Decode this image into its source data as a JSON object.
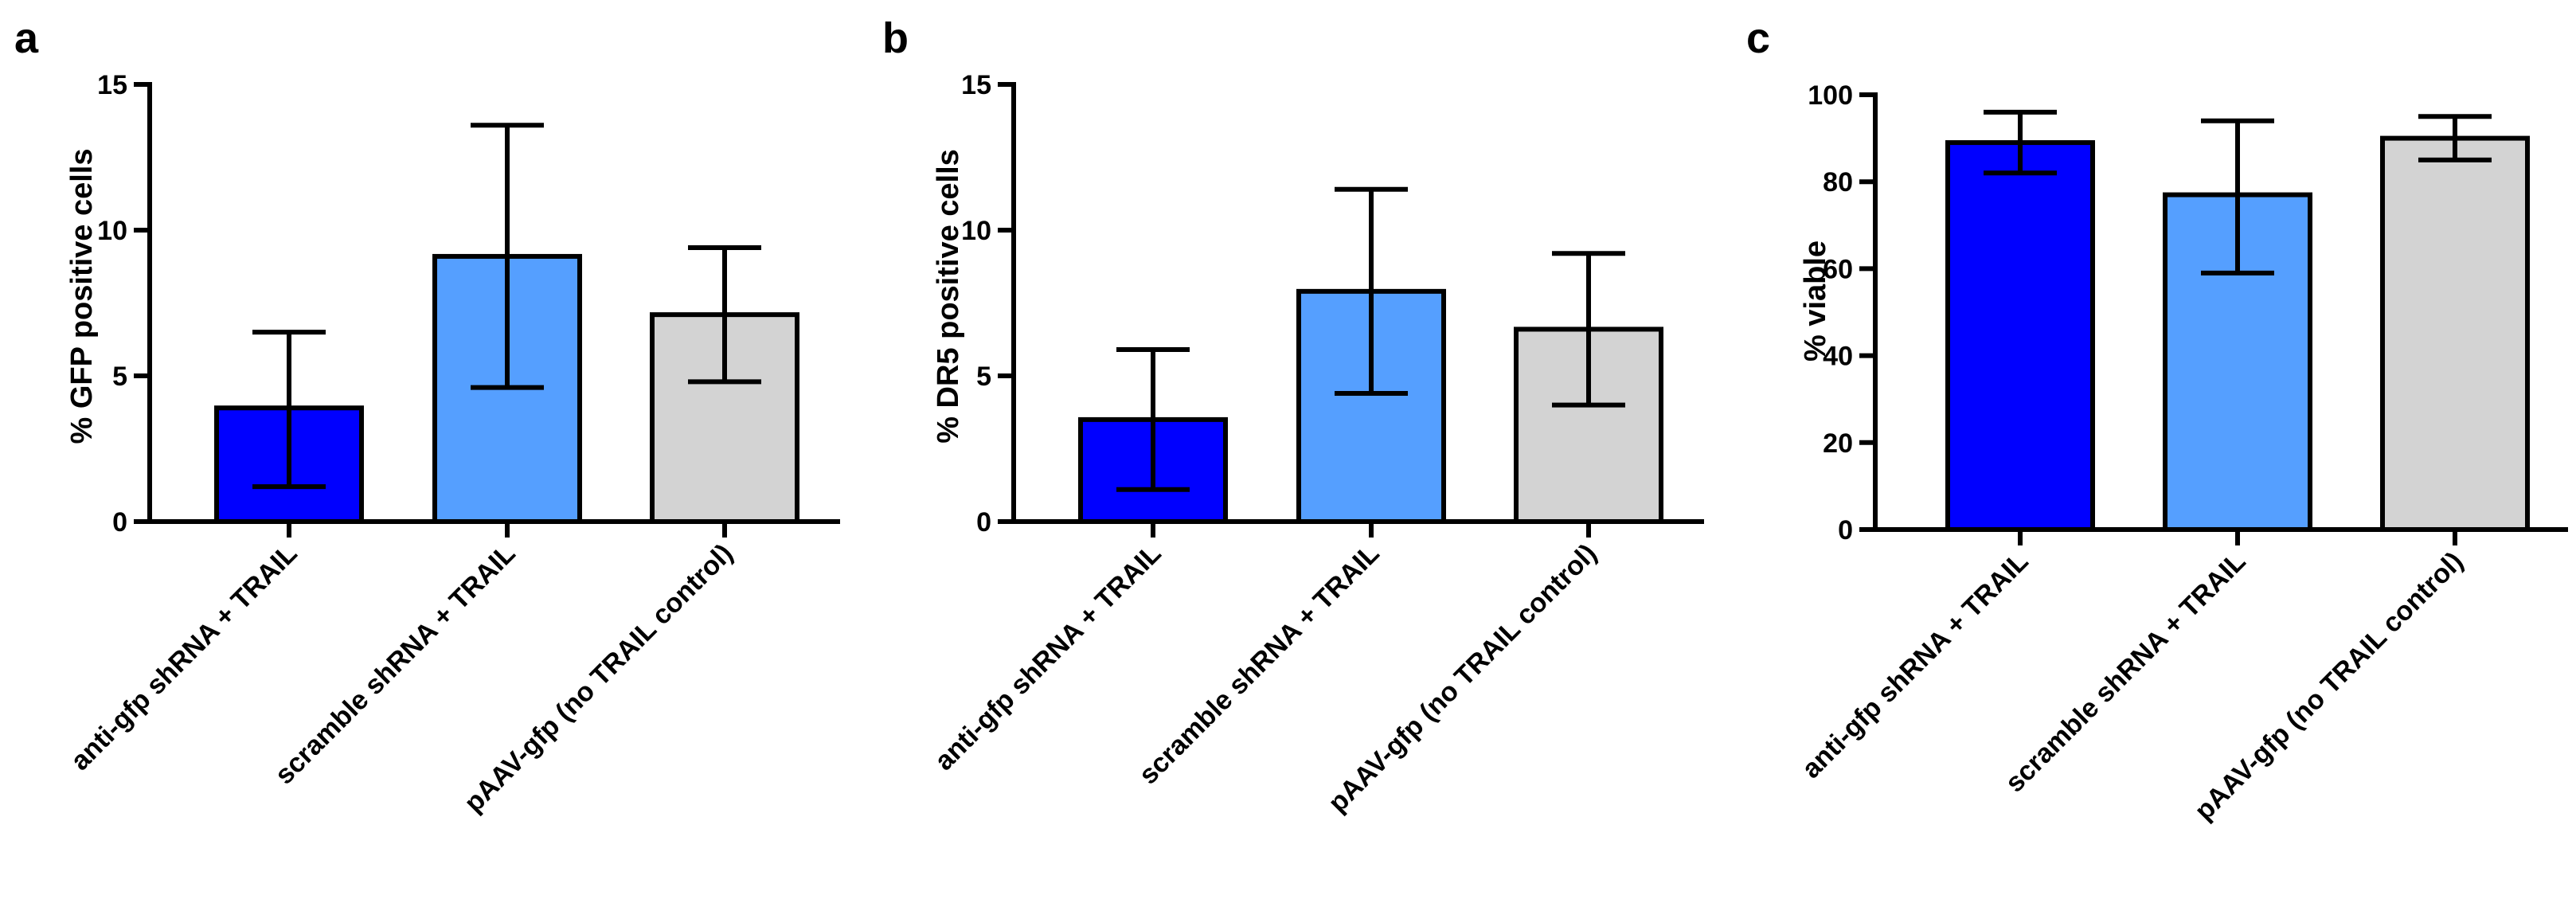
{
  "chart_data": [
    {
      "panel": "a",
      "type": "bar",
      "title": "",
      "xlabel": "",
      "ylabel": "% GFP positive cells",
      "ylim": [
        0,
        15
      ],
      "yticks": [
        0,
        5,
        10,
        15
      ],
      "categories": [
        "anti-gfp shRNA + TRAIL",
        "scramble shRNA + TRAIL",
        "pAAV-gfp (no TRAIL control)"
      ],
      "values": [
        3.9,
        9.1,
        7.1
      ],
      "error_low": [
        1.2,
        4.6,
        4.8
      ],
      "error_high": [
        6.5,
        13.6,
        9.4
      ],
      "colors": [
        "#0000ff",
        "#559fff",
        "#d3d3d3"
      ]
    },
    {
      "panel": "b",
      "type": "bar",
      "title": "",
      "xlabel": "",
      "ylabel": "% DR5 positive cells",
      "ylim": [
        0,
        15
      ],
      "yticks": [
        0,
        5,
        10,
        15
      ],
      "categories": [
        "anti-gfp shRNA + TRAIL",
        "scramble shRNA + TRAIL",
        "pAAV-gfp (no TRAIL control)"
      ],
      "values": [
        3.5,
        7.9,
        6.6
      ],
      "error_low": [
        1.1,
        4.4,
        4.0
      ],
      "error_high": [
        5.9,
        11.4,
        9.2
      ],
      "colors": [
        "#0000ff",
        "#559fff",
        "#d3d3d3"
      ]
    },
    {
      "panel": "c",
      "type": "bar",
      "title": "",
      "xlabel": "",
      "ylabel": "% viable",
      "ylim": [
        0,
        100
      ],
      "yticks": [
        0,
        20,
        40,
        60,
        80,
        100
      ],
      "categories": [
        "anti-gfp shRNA + TRAIL",
        "scramble shRNA + TRAIL",
        "pAAV-gfp (no TRAIL control)"
      ],
      "values": [
        89,
        77,
        90
      ],
      "error_low": [
        82,
        59,
        85
      ],
      "error_high": [
        96,
        94,
        95
      ],
      "colors": [
        "#0000ff",
        "#559fff",
        "#d3d3d3"
      ]
    }
  ]
}
